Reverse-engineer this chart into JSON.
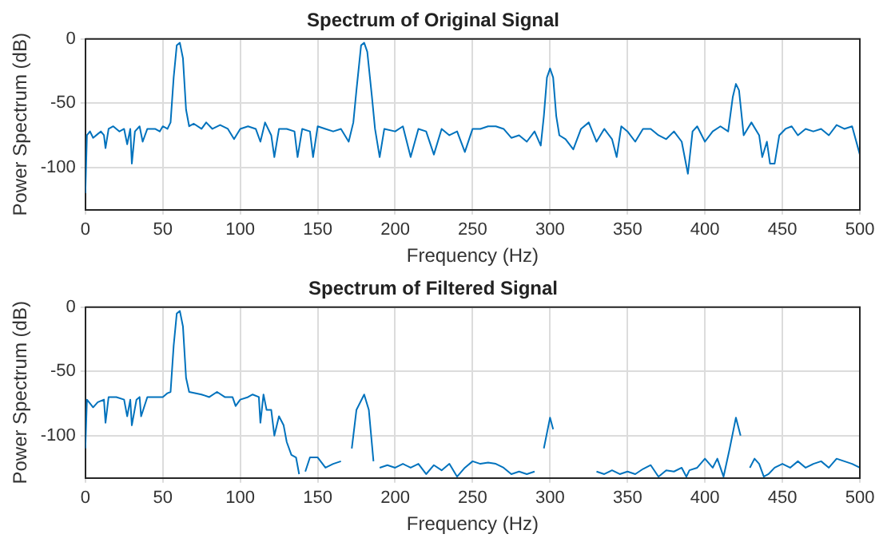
{
  "chart_data": [
    {
      "type": "line",
      "title": "Spectrum of Original Signal",
      "xlabel": "Frequency (Hz)",
      "ylabel": "Power Spectrum (dB)",
      "xlim": [
        0,
        500
      ],
      "ylim": [
        -133,
        0
      ],
      "xticks": [
        0,
        50,
        100,
        150,
        200,
        250,
        300,
        350,
        400,
        450,
        500
      ],
      "yticks": [
        -100,
        -50,
        0
      ],
      "grid": true,
      "legend": false,
      "marker": "none",
      "line_style": "solid",
      "series": [
        {
          "color": "#0072bd",
          "x": [
            0,
            1,
            3,
            5,
            8,
            10,
            12,
            13,
            15,
            18,
            22,
            25,
            27,
            29,
            30,
            32,
            35,
            37,
            40,
            45,
            48,
            50,
            53,
            55,
            57,
            59,
            61,
            63,
            65,
            67,
            70,
            75,
            78,
            82,
            87,
            92,
            96,
            100,
            105,
            110,
            113,
            116,
            120,
            122,
            125,
            130,
            135,
            137,
            140,
            145,
            147,
            150,
            155,
            160,
            165,
            170,
            173,
            175,
            178,
            180,
            182,
            185,
            187,
            190,
            193,
            200,
            205,
            210,
            215,
            220,
            225,
            230,
            235,
            240,
            245,
            250,
            255,
            260,
            265,
            270,
            275,
            280,
            285,
            290,
            294,
            296,
            298,
            300,
            302,
            304,
            306,
            310,
            315,
            320,
            325,
            330,
            335,
            340,
            343,
            346,
            350,
            355,
            360,
            365,
            370,
            375,
            380,
            385,
            389,
            392,
            395,
            400,
            405,
            410,
            415,
            418,
            420,
            422,
            425,
            430,
            435,
            437,
            440,
            442,
            445,
            448,
            452,
            456,
            460,
            465,
            470,
            475,
            480,
            485,
            490,
            495,
            500
          ],
          "values": [
            -120,
            -75,
            -72,
            -77,
            -74,
            -72,
            -75,
            -85,
            -70,
            -68,
            -72,
            -70,
            -82,
            -70,
            -97,
            -72,
            -68,
            -80,
            -70,
            -70,
            -72,
            -68,
            -70,
            -65,
            -30,
            -5,
            -3,
            -15,
            -55,
            -68,
            -66,
            -70,
            -65,
            -70,
            -67,
            -70,
            -78,
            -70,
            -68,
            -70,
            -80,
            -65,
            -75,
            -92,
            -70,
            -70,
            -72,
            -92,
            -70,
            -72,
            -92,
            -68,
            -70,
            -72,
            -70,
            -80,
            -65,
            -40,
            -5,
            -3,
            -10,
            -45,
            -70,
            -92,
            -70,
            -72,
            -68,
            -92,
            -70,
            -72,
            -90,
            -70,
            -75,
            -72,
            -88,
            -70,
            -70,
            -68,
            -68,
            -70,
            -77,
            -75,
            -80,
            -72,
            -83,
            -60,
            -30,
            -23,
            -30,
            -60,
            -75,
            -78,
            -86,
            -70,
            -65,
            -80,
            -70,
            -78,
            -92,
            -68,
            -72,
            -80,
            -70,
            -70,
            -75,
            -78,
            -72,
            -80,
            -105,
            -72,
            -68,
            -80,
            -72,
            -68,
            -72,
            -45,
            -35,
            -40,
            -75,
            -65,
            -75,
            -92,
            -80,
            -97,
            -97,
            -75,
            -70,
            -68,
            -75,
            -70,
            -72,
            -70,
            -75,
            -67,
            -70,
            -68,
            -90
          ]
        }
      ]
    },
    {
      "type": "line",
      "title": "Spectrum of Filtered Signal",
      "xlabel": "Frequency (Hz)",
      "ylabel": "Power Spectrum (dB)",
      "xlim": [
        0,
        500
      ],
      "ylim": [
        -133,
        0
      ],
      "xticks": [
        0,
        50,
        100,
        150,
        200,
        250,
        300,
        350,
        400,
        450,
        500
      ],
      "yticks": [
        -100,
        -50,
        0
      ],
      "grid": true,
      "legend": false,
      "marker": "none",
      "line_style": "solid",
      "series": [
        {
          "color": "#0072bd",
          "x": [
            0,
            1,
            3,
            5,
            8,
            12,
            13,
            15,
            20,
            25,
            27,
            29,
            30,
            33,
            35,
            36,
            40,
            45,
            50,
            53,
            55,
            57,
            59,
            61,
            63,
            65,
            67,
            75,
            80,
            85,
            90,
            95,
            97,
            100,
            105,
            108,
            112,
            113,
            115,
            117,
            120,
            122,
            125,
            128,
            130,
            133,
            136,
            138,
            140,
            142,
            145,
            150,
            155,
            160,
            165,
            168,
            172,
            175,
            180,
            183,
            186,
            188,
            190,
            195,
            200,
            205,
            210,
            215,
            220,
            225,
            230,
            235,
            240,
            245,
            250,
            255,
            260,
            265,
            270,
            275,
            280,
            285,
            290,
            293,
            296,
            300,
            302,
            305,
            330,
            335,
            340,
            345,
            350,
            355,
            360,
            365,
            370,
            375,
            380,
            385,
            388,
            390,
            395,
            400,
            405,
            408,
            412,
            416,
            420,
            423,
            426,
            429,
            432,
            435,
            438,
            441,
            445,
            450,
            455,
            460,
            465,
            470,
            475,
            480,
            485,
            490,
            495,
            500
          ],
          "values": [
            -110,
            -72,
            -75,
            -78,
            -74,
            -72,
            -90,
            -70,
            -70,
            -72,
            -85,
            -72,
            -92,
            -72,
            -70,
            -85,
            -70,
            -70,
            -70,
            -67,
            -66,
            -30,
            -5,
            -3,
            -15,
            -55,
            -66,
            -68,
            -70,
            -66,
            -70,
            -70,
            -77,
            -72,
            -70,
            -68,
            -70,
            -90,
            -68,
            -80,
            -80,
            -100,
            -85,
            -92,
            -105,
            -115,
            -117,
            -130,
            null,
            -128,
            -117,
            -117,
            -125,
            -122,
            -120,
            null,
            -110,
            -80,
            -68,
            -80,
            -120,
            null,
            -125,
            -123,
            -125,
            -122,
            -125,
            -122,
            -130,
            -123,
            -127,
            -122,
            -132,
            -125,
            -120,
            -122,
            -121,
            -122,
            -125,
            -130,
            -128,
            -130,
            -128,
            null,
            -110,
            -86,
            -95,
            null,
            -128,
            -130,
            -127,
            -130,
            -128,
            -130,
            -126,
            -123,
            -132,
            -127,
            -128,
            -125,
            -132,
            -127,
            -125,
            -118,
            -125,
            -118,
            -132,
            -110,
            -86,
            -100,
            null,
            -125,
            -118,
            -122,
            -132,
            -130,
            -125,
            -122,
            -125,
            -120,
            -125,
            -122,
            -120,
            -125,
            -118,
            -120,
            -122,
            -125
          ]
        }
      ]
    }
  ]
}
